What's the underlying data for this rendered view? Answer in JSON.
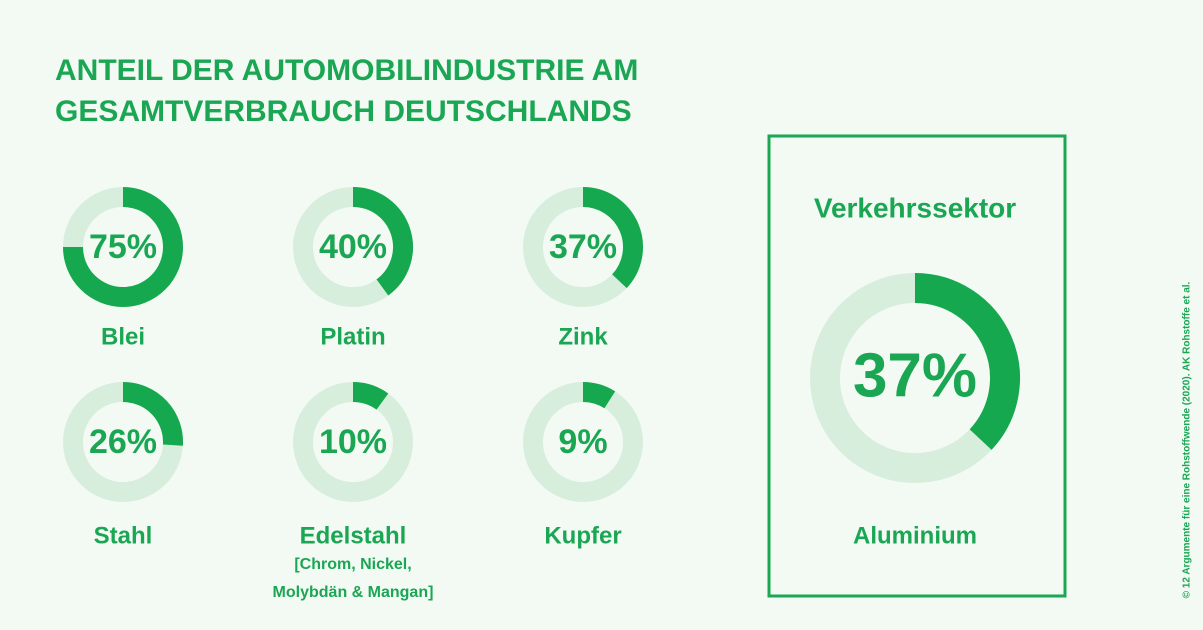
{
  "title": [
    "ANTEIL DER AUTOMOBILINDUSTRIE AM",
    "GESAMTVERBRAUCH DEUTSCHLANDS"
  ],
  "source": "© 12 Argumente für eine Rohstoffwende (2020). AK Rohstoffe et al.",
  "chart_data": [
    {
      "type": "donut",
      "categories": [
        "Blei"
      ],
      "values": [
        75
      ],
      "value_labels": [
        "75%"
      ],
      "color": "#15a84f"
    },
    {
      "type": "donut",
      "categories": [
        "Platin"
      ],
      "values": [
        40
      ],
      "value_labels": [
        "40%"
      ],
      "color": "#15a84f"
    },
    {
      "type": "donut",
      "categories": [
        "Zink"
      ],
      "values": [
        37
      ],
      "value_labels": [
        "37%"
      ],
      "color": "#15a84f"
    },
    {
      "type": "donut",
      "categories": [
        "Stahl"
      ],
      "values": [
        26
      ],
      "value_labels": [
        "26%"
      ],
      "color": "#15a84f"
    },
    {
      "type": "donut",
      "categories": [
        "Edelstahl"
      ],
      "subtitle": [
        "[Chrom, Nickel,",
        "Molybdän & Mangan]"
      ],
      "values": [
        10
      ],
      "value_labels": [
        "10%"
      ],
      "color": "#15a84f"
    },
    {
      "type": "donut",
      "categories": [
        "Kupfer"
      ],
      "values": [
        9
      ],
      "value_labels": [
        "9%"
      ],
      "color": "#15a84f"
    },
    {
      "type": "donut",
      "title": "Verkehrssektor",
      "categories": [
        "Aluminium"
      ],
      "values": [
        37
      ],
      "value_labels": [
        "37%"
      ],
      "color": "#15a84f"
    }
  ]
}
